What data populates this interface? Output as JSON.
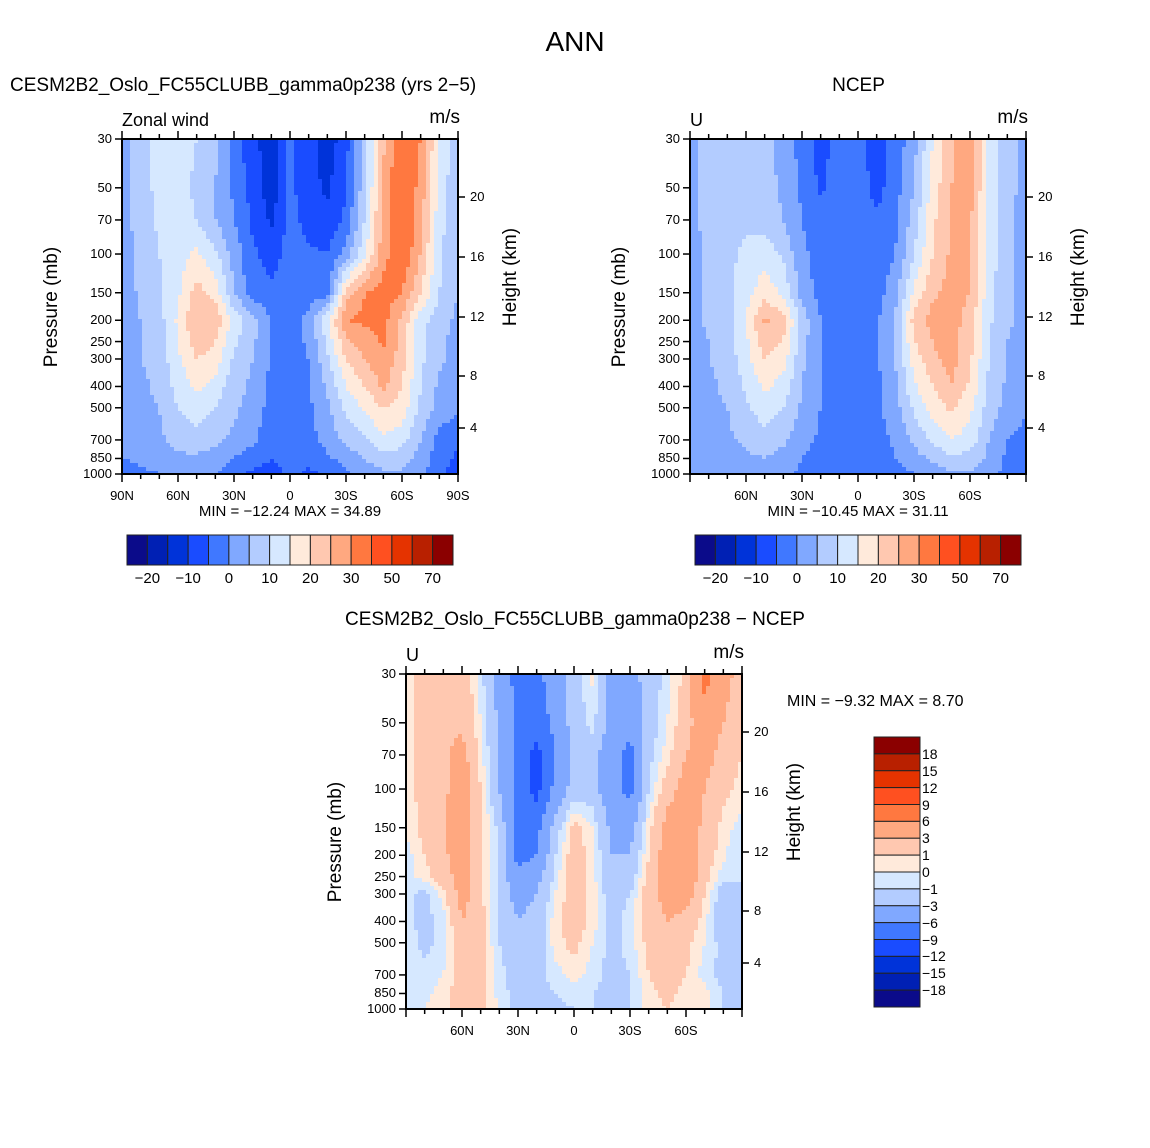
{
  "title": "ANN",
  "panels": [
    {
      "title": "CESM2B2_Oslo_FC55CLUBB_gamma0p238 (yrs 2−5)",
      "left_label": "Zonal wind",
      "units": "m/s",
      "ylabel": "Pressure (mb)",
      "y2label": "Height (km)",
      "min_max": "MIN =  −12.24    MAX =   34.89"
    },
    {
      "title": "NCEP",
      "left_label": "U",
      "units": "m/s",
      "ylabel": "Pressure (mb)",
      "y2label": "Height (km)",
      "min_max": "MIN =  −10.45    MAX =   31.11"
    },
    {
      "title": "CESM2B2_Oslo_FC55CLUBB_gamma0p238 − NCEP",
      "left_label": "U",
      "units": "m/s",
      "ylabel": "Pressure (mb)",
      "y2label": "Height (km)",
      "min_max": "MIN =    −9.32    MAX =     8.70"
    }
  ],
  "colorbars": [
    {
      "labels": [
        "−20",
        "−10",
        "0",
        "10",
        "20",
        "30",
        "50",
        "70"
      ]
    },
    {
      "labels": [
        "−20",
        "−10",
        "0",
        "10",
        "20",
        "30",
        "50",
        "70"
      ]
    },
    {
      "labels": [
        "18",
        "15",
        "12",
        "9",
        "6",
        "3",
        "1",
        "0",
        "−1",
        "−3",
        "−6",
        "−9",
        "−12",
        "−15",
        "−18"
      ]
    }
  ],
  "chart_data": {
    "type": "heatmap",
    "colors": [
      "#0b0b8a",
      "#0020b4",
      "#0033d9",
      "#1a4cff",
      "#4078ff",
      "#80a8ff",
      "#b3ccff",
      "#d6e8ff",
      "#ffeadb",
      "#ffc8b0",
      "#ffa880",
      "#ff7840",
      "#ff5020",
      "#e53300",
      "#b82000",
      "#8b0000"
    ],
    "pressure_levels": [
      30,
      50,
      70,
      100,
      150,
      200,
      250,
      300,
      400,
      500,
      700,
      850,
      1000
    ],
    "pressure_tick_labels": [
      "30",
      "50",
      "70",
      "100",
      "150",
      "200",
      "250",
      "300",
      "400",
      "500",
      "700",
      "850",
      "1000"
    ],
    "height_ticks": [
      "20",
      "16",
      "12",
      "8",
      "4"
    ],
    "lat": [
      90,
      80,
      70,
      60,
      50,
      40,
      30,
      20,
      10,
      0,
      -10,
      -20,
      -30,
      -40,
      -50,
      -60,
      -70,
      -80,
      -90
    ],
    "x_tick_labels_full": [
      "90N",
      "60N",
      "30N",
      "0",
      "30S",
      "60S",
      "90S"
    ],
    "x_tick_labels_short": [
      "60N",
      "30N",
      "0",
      "30S",
      "60S"
    ],
    "fields": [
      {
        "name": "model",
        "min": -12.24,
        "max": 34.89,
        "levels": [
          -20,
          -15,
          -10,
          -5,
          0,
          5,
          10,
          15,
          20,
          25,
          30,
          40,
          50,
          60,
          70
        ],
        "values": [
          [
            3,
            8,
            12,
            12,
            10,
            6,
            -2,
            -9,
            -12,
            -4,
            -8,
            -13,
            -7,
            7,
            24,
            35,
            30,
            14,
            7
          ],
          [
            3,
            7,
            12,
            12,
            9,
            5,
            -1,
            -7,
            -13,
            -4,
            -8,
            -11,
            -5,
            8,
            26,
            36,
            28,
            13,
            6
          ],
          [
            3,
            7,
            11,
            12,
            10,
            5,
            0,
            -6,
            -11,
            -3,
            -7,
            -9,
            -4,
            10,
            27,
            36,
            27,
            12,
            6
          ],
          [
            3,
            6,
            10,
            13,
            16,
            11,
            3,
            -4,
            -7,
            -3,
            -4,
            -5,
            2,
            14,
            28,
            35,
            25,
            11,
            5
          ],
          [
            2,
            6,
            9,
            14,
            22,
            18,
            5,
            -3,
            -4,
            -3,
            -3,
            -2,
            22,
            30,
            32,
            30,
            20,
            10,
            5
          ],
          [
            2,
            5,
            8,
            16,
            25,
            24,
            13,
            7,
            0,
            -3,
            2,
            14,
            30,
            31,
            32,
            24,
            12,
            7,
            4
          ],
          [
            2,
            5,
            8,
            15,
            23,
            20,
            11,
            6,
            0,
            -3,
            1,
            11,
            24,
            27,
            31,
            23,
            12,
            6,
            3
          ],
          [
            2,
            5,
            7,
            14,
            20,
            18,
            9,
            5,
            -1,
            -3,
            0,
            9,
            20,
            25,
            29,
            22,
            11,
            6,
            3
          ],
          [
            2,
            4,
            6,
            12,
            16,
            13,
            7,
            4,
            -1,
            -3,
            -1,
            6,
            15,
            20,
            26,
            20,
            10,
            4,
            2
          ],
          [
            2,
            4,
            5,
            10,
            13,
            10,
            6,
            3,
            -2,
            -3,
            -1,
            4,
            11,
            16,
            20,
            18,
            9,
            3,
            1
          ],
          [
            1,
            3,
            4,
            7,
            8,
            6,
            4,
            1,
            -3,
            -3,
            -2,
            2,
            6,
            9,
            14,
            12,
            5,
            -2,
            -4
          ],
          [
            0,
            1,
            2,
            4,
            4,
            3,
            0,
            -3,
            -5,
            -3,
            -4,
            -1,
            2,
            5,
            8,
            7,
            3,
            -3,
            -6
          ],
          [
            -2,
            -1,
            0,
            1,
            2,
            0,
            -3,
            -6,
            -7,
            -4,
            -6,
            -4,
            -1,
            2,
            4,
            4,
            2,
            -4,
            -7
          ]
        ]
      },
      {
        "name": "obs",
        "min": -10.45,
        "max": 31.11,
        "levels": [
          -20,
          -15,
          -10,
          -5,
          0,
          5,
          10,
          15,
          20,
          25,
          30,
          40,
          50,
          60,
          70
        ],
        "values": [
          [
            3,
            7,
            8,
            8,
            7,
            3,
            -2,
            -7,
            -3,
            -3,
            -8,
            -3,
            3,
            15,
            24,
            28,
            14,
            7,
            3
          ],
          [
            3,
            7,
            8,
            8,
            7,
            4,
            -1,
            -6,
            -2,
            -2,
            -7,
            -2,
            5,
            17,
            25,
            27,
            14,
            7,
            3
          ],
          [
            3,
            7,
            8,
            9,
            8,
            5,
            0,
            -3,
            -2,
            -2,
            -4,
            -1,
            7,
            19,
            25,
            26,
            14,
            6,
            3
          ],
          [
            3,
            6,
            9,
            11,
            13,
            9,
            1,
            -2,
            -2,
            -2,
            -3,
            0,
            10,
            20,
            26,
            25,
            13,
            6,
            3
          ],
          [
            3,
            6,
            8,
            13,
            18,
            14,
            3,
            -2,
            -2,
            -2,
            -2,
            3,
            16,
            24,
            27,
            25,
            12,
            6,
            3
          ],
          [
            3,
            6,
            8,
            15,
            26,
            22,
            8,
            0,
            -2,
            -2,
            -1,
            6,
            22,
            27,
            27,
            23,
            11,
            6,
            3
          ],
          [
            3,
            5,
            8,
            14,
            23,
            20,
            7,
            0,
            -2,
            -2,
            -1,
            5,
            20,
            25,
            27,
            22,
            10,
            5,
            3
          ],
          [
            3,
            5,
            7,
            13,
            20,
            17,
            6,
            0,
            -2,
            -2,
            -1,
            5,
            17,
            24,
            27,
            21,
            10,
            5,
            2
          ],
          [
            3,
            4,
            6,
            11,
            16,
            13,
            5,
            0,
            -2,
            -2,
            -1,
            4,
            14,
            20,
            25,
            19,
            9,
            4,
            2
          ],
          [
            2,
            4,
            5,
            9,
            13,
            10,
            4,
            0,
            -2,
            -3,
            -1,
            3,
            11,
            17,
            21,
            16,
            8,
            3,
            1
          ],
          [
            2,
            3,
            4,
            6,
            8,
            6,
            2,
            -1,
            -2,
            -4,
            -2,
            1,
            6,
            11,
            15,
            13,
            5,
            0,
            -2
          ],
          [
            1,
            2,
            3,
            4,
            5,
            3,
            0,
            -2,
            -3,
            -3,
            -3,
            0,
            3,
            6,
            9,
            8,
            4,
            -1,
            -3
          ],
          [
            0,
            1,
            1,
            2,
            2,
            1,
            -1,
            -3,
            -3,
            -3,
            -4,
            -2,
            0,
            2,
            4,
            4,
            2,
            -2,
            -4
          ]
        ]
      },
      {
        "name": "difference",
        "min": -9.32,
        "max": 8.7,
        "levels": [
          -18,
          -15,
          -12,
          -9,
          -6,
          -3,
          -1,
          0,
          1,
          3,
          6,
          9,
          12,
          15,
          18
        ],
        "values": [
          [
            0.5,
            2,
            2,
            2.5,
            -0.5,
            -4,
            -7,
            -7,
            -4,
            -2,
            0.3,
            -4,
            -4,
            -2,
            -0.5,
            1.5,
            7,
            4,
            2
          ],
          [
            0.5,
            2,
            2.5,
            2.5,
            0,
            -3.5,
            -7,
            -8,
            -5,
            -2,
            -0.5,
            -4,
            -5,
            -2,
            0,
            2,
            5,
            3,
            1.5
          ],
          [
            0.5,
            2,
            2.5,
            4,
            0.5,
            -3,
            -7,
            -10,
            -6,
            -2.5,
            -2,
            -5,
            -7,
            -1.5,
            0.5,
            3,
            4,
            2,
            1
          ],
          [
            0.5,
            1.5,
            2.5,
            4.5,
            1,
            -3,
            -7,
            -10,
            -5,
            -2,
            -2,
            -5,
            -7,
            -1,
            2,
            4,
            3,
            1.5,
            0.5
          ],
          [
            0.3,
            1.5,
            2.5,
            4.5,
            1.5,
            -1.5,
            -7,
            -7,
            -2,
            1.5,
            0,
            -3.5,
            -4,
            0.5,
            4,
            4.5,
            2.5,
            0.5,
            -0.5
          ],
          [
            -0.5,
            1,
            2.5,
            4.5,
            1.5,
            -1.5,
            -7,
            -6,
            -1,
            2,
            0.5,
            -3,
            -3,
            1,
            4.5,
            5,
            2,
            0.2,
            -1
          ],
          [
            -0.5,
            0.5,
            2,
            4,
            1.5,
            -1.5,
            -5,
            -4,
            -0.5,
            2,
            0.5,
            -2.5,
            -2,
            1.5,
            4.5,
            5,
            1.5,
            -0.5,
            -1
          ],
          [
            -0.5,
            -1.5,
            0.5,
            4,
            1.5,
            -1.5,
            -4,
            -3,
            0,
            2,
            0.5,
            -2,
            -1,
            2,
            4,
            4.5,
            1,
            -2,
            -1
          ],
          [
            -0.5,
            -1.5,
            -0.5,
            3,
            1.5,
            -1,
            -3,
            -2,
            0.5,
            2,
            0.5,
            -1.5,
            -0.5,
            2,
            3,
            2,
            0.5,
            -3,
            -1
          ],
          [
            -0.3,
            -1.5,
            -0.5,
            2,
            1.5,
            -1,
            -2,
            -2,
            0.5,
            1.5,
            0,
            -1.5,
            -0.5,
            1.5,
            2.5,
            1.5,
            0,
            -1.5,
            -1
          ],
          [
            -0.3,
            -0.5,
            0,
            1.5,
            1.5,
            -0.5,
            -2,
            -1.5,
            -0.5,
            0.5,
            -0.5,
            -1.5,
            -1,
            1,
            2,
            1,
            -0.5,
            -1.5,
            -1.5
          ],
          [
            -0.3,
            -0.3,
            0.5,
            2,
            1.5,
            -0.5,
            -1.5,
            -1.5,
            -1,
            -0.5,
            -1,
            -1.5,
            -1,
            0.5,
            1.5,
            0.5,
            0.5,
            -1,
            -2
          ],
          [
            0,
            0,
            0.5,
            2,
            1.5,
            0,
            -1.5,
            -1.5,
            -1.5,
            -1,
            -1,
            -1.5,
            -1,
            0.5,
            1,
            0.5,
            0.5,
            -1,
            -2
          ]
        ]
      }
    ]
  }
}
